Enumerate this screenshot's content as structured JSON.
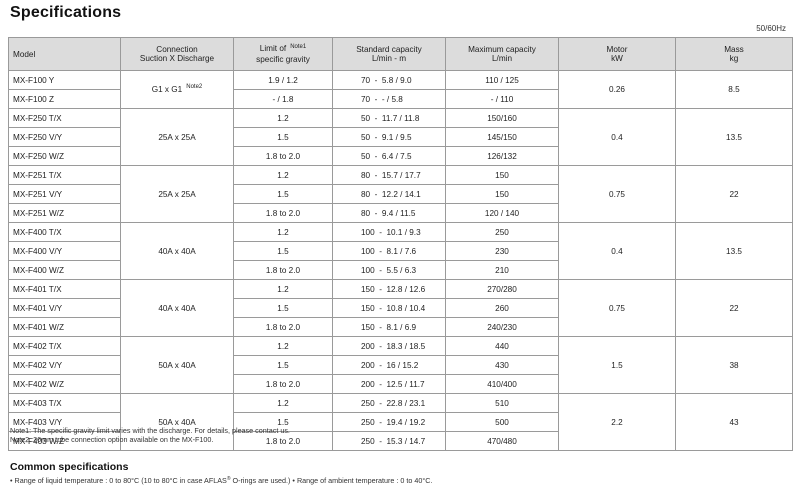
{
  "title": "Specifications",
  "frequency": "50/60Hz",
  "headers": {
    "model": "Model",
    "connection_line1": "Connection",
    "connection_line2": "Suction X Discharge",
    "gravity_line1": "Limit of",
    "gravity_note": "Note1",
    "gravity_line2": "specific gravity",
    "std_line1": "Standard capacity",
    "std_line2": "L/min - m",
    "max_line1": "Maximum capacity",
    "max_line2": "L/min",
    "motor_line1": "Motor",
    "motor_line2": "kW",
    "mass_line1": "Mass",
    "mass_line2": "kg"
  },
  "groups": [
    {
      "connection": "G1 x G1",
      "conn_note": "Note2",
      "motor": "0.26",
      "mass": "8.5",
      "rows": [
        {
          "model": "MX-F100 Y",
          "gravity": "1.9 / 1.2",
          "std": "70  -  5.8 / 9.0",
          "max": "110 / 125"
        },
        {
          "model": "MX-F100 Z",
          "gravity": "- / 1.8",
          "std": "70  -  - / 5.8",
          "max": "- / 110"
        }
      ]
    },
    {
      "connection": "25A x 25A",
      "conn_note": "",
      "motor": "0.4",
      "mass": "13.5",
      "rows": [
        {
          "model": "MX-F250 T/X",
          "gravity": "1.2",
          "std": "50  -  11.7 / 11.8",
          "max": "150/160"
        },
        {
          "model": "MX-F250 V/Y",
          "gravity": "1.5",
          "std": "50  -  9.1 / 9.5",
          "max": "145/150"
        },
        {
          "model": "MX-F250 W/Z",
          "gravity": "1.8 to 2.0",
          "std": "50  -  6.4 / 7.5",
          "max": "126/132"
        }
      ]
    },
    {
      "connection": "25A x 25A",
      "conn_note": "",
      "motor": "0.75",
      "mass": "22",
      "rows": [
        {
          "model": "MX-F251 T/X",
          "gravity": "1.2",
          "std": "80  -  15.7 / 17.7",
          "max": "150"
        },
        {
          "model": "MX-F251 V/Y",
          "gravity": "1.5",
          "std": "80  -  12.2 / 14.1",
          "max": "150"
        },
        {
          "model": "MX-F251 W/Z",
          "gravity": "1.8 to 2.0",
          "std": "80  -  9.4 / 11.5",
          "max": "120 / 140"
        }
      ]
    },
    {
      "connection": "40A x 40A",
      "conn_note": "",
      "motor": "0.4",
      "mass": "13.5",
      "rows": [
        {
          "model": "MX-F400 T/X",
          "gravity": "1.2",
          "std": "100  -  10.1 / 9.3",
          "max": "250"
        },
        {
          "model": "MX-F400 V/Y",
          "gravity": "1.5",
          "std": "100  -  8.1 / 7.6",
          "max": "230"
        },
        {
          "model": "MX-F400 W/Z",
          "gravity": "1.8 to 2.0",
          "std": "100  -  5.5 / 6.3",
          "max": "210"
        }
      ]
    },
    {
      "connection": "40A x 40A",
      "conn_note": "",
      "motor": "0.75",
      "mass": "22",
      "rows": [
        {
          "model": "MX-F401 T/X",
          "gravity": "1.2",
          "std": "150  -  12.8 / 12.6",
          "max": "270/280"
        },
        {
          "model": "MX-F401 V/Y",
          "gravity": "1.5",
          "std": "150  -  10.8 / 10.4",
          "max": "260"
        },
        {
          "model": "MX-F401 W/Z",
          "gravity": "1.8 to 2.0",
          "std": "150  -  8.1 / 6.9",
          "max": "240/230"
        }
      ]
    },
    {
      "connection": "50A x 40A",
      "conn_note": "",
      "motor": "1.5",
      "mass": "38",
      "rows": [
        {
          "model": "MX-F402 T/X",
          "gravity": "1.2",
          "std": "200  -  18.3 / 18.5",
          "max": "440"
        },
        {
          "model": "MX-F402 V/Y",
          "gravity": "1.5",
          "std": "200  -  16 / 15.2",
          "max": "430"
        },
        {
          "model": "MX-F402 W/Z",
          "gravity": "1.8 to 2.0",
          "std": "200  -  12.5 / 11.7",
          "max": "410/400"
        }
      ]
    },
    {
      "connection": "50A x 40A",
      "conn_note": "",
      "motor": "2.2",
      "mass": "43",
      "rows": [
        {
          "model": "MX-F403 T/X",
          "gravity": "1.2",
          "std": "250  -  22.8 / 23.1",
          "max": "510"
        },
        {
          "model": "MX-F403 V/Y",
          "gravity": "1.5",
          "std": "250  -  19.4 / 19.2",
          "max": "500"
        },
        {
          "model": "MX-F403 W/Z",
          "gravity": "1.8 to 2.0",
          "std": "250  -  15.3 / 14.7",
          "max": "470/480"
        }
      ]
    }
  ],
  "notes": {
    "note1": "Note1: The specific gravity limit varies with the discharge.  For details, please contact us.",
    "note2": "Note2: 26mm tube connection option available on the MX-F100."
  },
  "common": {
    "title": "Common specifications",
    "line_part1": "• Range of liquid temperature : 0 to 80°C (10 to 80°C in case AFLAS",
    "reg_mark": "®",
    "line_part2": " O-rings are used.)  • Range of ambient temperature : 0 to 40°C."
  }
}
